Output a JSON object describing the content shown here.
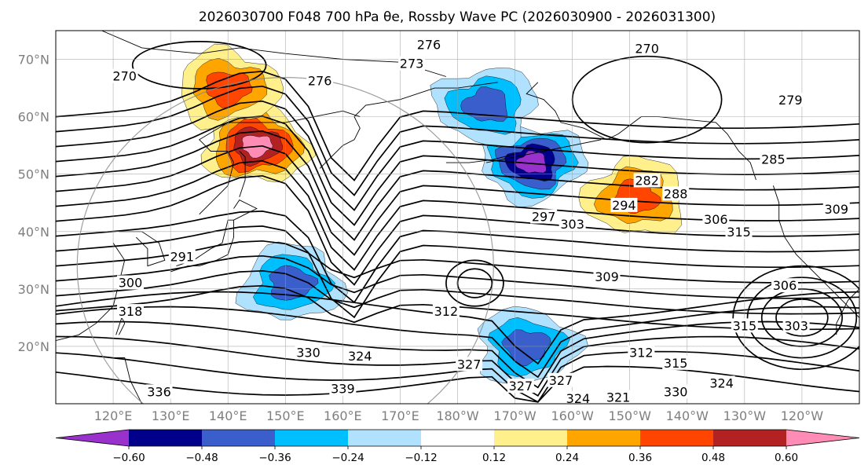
{
  "figure": {
    "title": "2026030700 F048 700 hPa θe, Rossby Wave PC (2026030900 - 2026031300)"
  },
  "chart_data": {
    "type": "contour-map",
    "title": "2026030700 F048 700 hPa θe, Rossby Wave PC (2026030900 - 2026031300)",
    "projection": "plate-carree",
    "lon_range_deg_east": [
      110,
      250
    ],
    "lat_range_deg": [
      10,
      75
    ],
    "gridlines": true,
    "lat_tick_labels": [
      "20°N",
      "30°N",
      "40°N",
      "50°N",
      "60°N",
      "70°N"
    ],
    "lat_tick_values": [
      20,
      30,
      40,
      50,
      60,
      70
    ],
    "lon_tick_labels": [
      "120°E",
      "130°E",
      "140°E",
      "150°E",
      "160°E",
      "170°E",
      "180°W",
      "170°W",
      "160°W",
      "150°W",
      "140°W",
      "130°W",
      "120°W"
    ],
    "lon_tick_values": [
      120,
      130,
      140,
      150,
      160,
      170,
      180,
      190,
      200,
      210,
      220,
      230,
      240
    ],
    "theta_e_contour_labels": [
      {
        "text": "276",
        "lon": 175,
        "lat": 72.5
      },
      {
        "text": "270",
        "lon": 213,
        "lat": 71.8
      },
      {
        "text": "273",
        "lon": 172,
        "lat": 69.2
      },
      {
        "text": "270",
        "lon": 122,
        "lat": 67.0
      },
      {
        "text": "276",
        "lon": 156,
        "lat": 66.2
      },
      {
        "text": "279",
        "lon": 238,
        "lat": 62.8
      },
      {
        "text": "285",
        "lon": 235,
        "lat": 52.5
      },
      {
        "text": "282",
        "lon": 213,
        "lat": 48.8
      },
      {
        "text": "288",
        "lon": 218,
        "lat": 46.5
      },
      {
        "text": "294",
        "lon": 209,
        "lat": 44.5
      },
      {
        "text": "297",
        "lon": 195,
        "lat": 42.5
      },
      {
        "text": "303",
        "lon": 200,
        "lat": 41.2
      },
      {
        "text": "306",
        "lon": 225,
        "lat": 42.0
      },
      {
        "text": "309",
        "lon": 246,
        "lat": 43.8
      },
      {
        "text": "315",
        "lon": 229,
        "lat": 39.8
      },
      {
        "text": "291",
        "lon": 132,
        "lat": 35.5
      },
      {
        "text": "300",
        "lon": 123,
        "lat": 31.0
      },
      {
        "text": "309",
        "lon": 206,
        "lat": 32.0
      },
      {
        "text": "306",
        "lon": 237,
        "lat": 30.5
      },
      {
        "text": "318",
        "lon": 123,
        "lat": 26.0
      },
      {
        "text": "312",
        "lon": 178,
        "lat": 26.0
      },
      {
        "text": "315",
        "lon": 230,
        "lat": 23.5
      },
      {
        "text": "303",
        "lon": 239,
        "lat": 23.5
      },
      {
        "text": "330",
        "lon": 154,
        "lat": 18.8
      },
      {
        "text": "324",
        "lon": 163,
        "lat": 18.2
      },
      {
        "text": "312",
        "lon": 212,
        "lat": 18.8
      },
      {
        "text": "315",
        "lon": 218,
        "lat": 17.0
      },
      {
        "text": "327",
        "lon": 182,
        "lat": 16.8
      },
      {
        "text": "330",
        "lon": 218,
        "lat": 12.0
      },
      {
        "text": "324",
        "lon": 226,
        "lat": 13.5
      },
      {
        "text": "327",
        "lon": 198,
        "lat": 14.0
      },
      {
        "text": "339",
        "lon": 160,
        "lat": 12.5
      },
      {
        "text": "336",
        "lon": 128,
        "lat": 12.0
      },
      {
        "text": "324",
        "lon": 201,
        "lat": 10.8
      },
      {
        "text": "321",
        "lon": 208,
        "lat": 11.0
      },
      {
        "text": "327",
        "lon": 191,
        "lat": 13.0
      }
    ],
    "pc_fill_anomalies": [
      {
        "sign": "positive",
        "peak": 0.62,
        "lon_center": 145,
        "lat_center": 55
      },
      {
        "sign": "positive",
        "peak": 0.45,
        "lon_center": 140,
        "lat_center": 65
      },
      {
        "sign": "negative",
        "peak": -0.62,
        "lon_center": 193,
        "lat_center": 52
      },
      {
        "sign": "negative",
        "peak": -0.45,
        "lon_center": 185,
        "lat_center": 62
      },
      {
        "sign": "positive",
        "peak": 0.4,
        "lon_center": 211,
        "lat_center": 46
      },
      {
        "sign": "negative",
        "peak": -0.38,
        "lon_center": 151,
        "lat_center": 31
      },
      {
        "sign": "negative",
        "peak": -0.4,
        "lon_center": 192,
        "lat_center": 20
      }
    ],
    "colorbar": {
      "orientation": "horizontal",
      "extend": "both",
      "levels": [
        -0.72,
        -0.6,
        -0.48,
        -0.36,
        -0.24,
        -0.12,
        0.12,
        0.24,
        0.36,
        0.48,
        0.6,
        0.72
      ],
      "tick_labels": [
        "−0.60",
        "−0.48",
        "−0.36",
        "−0.24",
        "−0.12",
        "0.12",
        "0.24",
        "0.36",
        "0.48",
        "0.60"
      ],
      "colors": [
        "#9932cc",
        "#00008b",
        "#3a5fcd",
        "#00bfff",
        "#b0e2ff",
        "#ffffff",
        "#fff08c",
        "#ffa500",
        "#ff4500",
        "#b22222",
        "#ff8cb4"
      ]
    }
  }
}
